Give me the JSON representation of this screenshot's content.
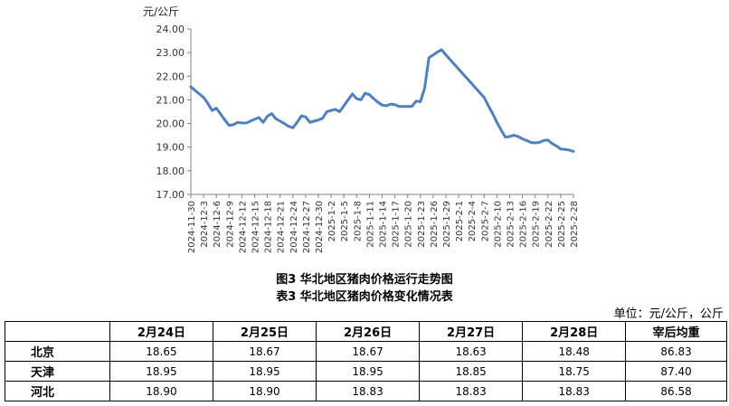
{
  "chart_data": {
    "type": "line",
    "unit_label": "元/公斤",
    "ylim": [
      17.0,
      24.0
    ],
    "yticks": [
      "17.00",
      "18.00",
      "19.00",
      "20.00",
      "21.00",
      "22.00",
      "23.00",
      "24.00"
    ],
    "x_tick_labels": [
      "2024-11-30",
      "2024-12-3",
      "2024-12-6",
      "2024-12-9",
      "2024-12-12",
      "2024-12-15",
      "2024-12-18",
      "2024-12-21",
      "2024-12-24",
      "2024-12-27",
      "2024-12-30",
      "2025-1-2",
      "2025-1-5",
      "2025-1-8",
      "2025-1-11",
      "2025-1-14",
      "2025-1-17",
      "2025-1-20",
      "2025-1-23",
      "2025-1-26",
      "2025-1-29",
      "2025-2-1",
      "2025-2-4",
      "2025-2-7",
      "2025-2-10",
      "2025-2-13",
      "2025-2-16",
      "2025-2-19",
      "2025-2-22",
      "2025-2-25",
      "2025-2-28"
    ],
    "series": [
      {
        "color": "#4f81bd",
        "x": [
          "2024-11-30",
          "2024-12-1",
          "2024-12-2",
          "2024-12-3",
          "2024-12-4",
          "2024-12-5",
          "2024-12-6",
          "2024-12-7",
          "2024-12-8",
          "2024-12-9",
          "2024-12-10",
          "2024-12-11",
          "2024-12-12",
          "2024-12-13",
          "2024-12-14",
          "2024-12-15",
          "2024-12-16",
          "2024-12-17",
          "2024-12-18",
          "2024-12-19",
          "2024-12-20",
          "2024-12-21",
          "2024-12-22",
          "2024-12-23",
          "2024-12-24",
          "2024-12-25",
          "2024-12-26",
          "2024-12-27",
          "2024-12-28",
          "2024-12-29",
          "2024-12-30",
          "2024-12-31",
          "2025-1-1",
          "2025-1-2",
          "2025-1-3",
          "2025-1-4",
          "2025-1-5",
          "2025-1-6",
          "2025-1-7",
          "2025-1-8",
          "2025-1-9",
          "2025-1-10",
          "2025-1-11",
          "2025-1-12",
          "2025-1-13",
          "2025-1-14",
          "2025-1-15",
          "2025-1-16",
          "2025-1-17",
          "2025-1-18",
          "2025-1-19",
          "2025-1-20",
          "2025-1-21",
          "2025-1-22",
          "2025-1-23",
          "2025-1-24",
          "2025-1-25",
          "2025-1-26",
          "2025-1-27",
          "2025-1-28",
          "2025-1-29",
          "2025-1-30",
          "2025-1-31",
          "2025-2-1",
          "2025-2-2",
          "2025-2-3",
          "2025-2-4",
          "2025-2-5",
          "2025-2-6",
          "2025-2-7",
          "2025-2-8",
          "2025-2-9",
          "2025-2-10",
          "2025-2-11",
          "2025-2-12",
          "2025-2-13",
          "2025-2-14",
          "2025-2-15",
          "2025-2-16",
          "2025-2-17",
          "2025-2-18",
          "2025-2-19",
          "2025-2-20",
          "2025-2-21",
          "2025-2-22",
          "2025-2-23",
          "2025-2-24",
          "2025-2-25",
          "2025-2-26",
          "2025-2-27",
          "2025-2-28"
        ],
        "values": [
          21.55,
          21.4,
          21.25,
          21.1,
          20.85,
          20.55,
          20.65,
          20.4,
          20.15,
          19.92,
          19.95,
          20.05,
          20.02,
          20.02,
          20.1,
          20.18,
          20.25,
          20.05,
          20.3,
          20.42,
          20.2,
          20.1,
          20.0,
          19.88,
          19.82,
          20.05,
          20.32,
          20.28,
          20.05,
          20.1,
          20.15,
          20.22,
          20.5,
          20.55,
          20.6,
          20.5,
          20.75,
          21.0,
          21.25,
          21.05,
          21.0,
          21.28,
          21.22,
          21.05,
          20.9,
          20.78,
          20.75,
          20.82,
          20.8,
          20.72,
          20.72,
          20.72,
          20.72,
          20.95,
          20.92,
          21.5,
          22.78,
          22.9,
          23.02,
          23.12,
          22.9,
          22.7,
          22.5,
          22.3,
          22.1,
          21.9,
          21.7,
          21.5,
          21.3,
          21.1,
          20.75,
          20.42,
          20.05,
          19.72,
          19.42,
          19.45,
          19.5,
          19.45,
          19.35,
          19.28,
          19.2,
          19.18,
          19.2,
          19.28,
          19.3,
          19.15,
          19.05,
          18.92,
          18.9,
          18.88,
          18.82
        ]
      }
    ]
  },
  "captions": {
    "figure": "图3  华北地区猪肉价格运行走势图",
    "table": "表3  华北地区猪肉价格变化情况表",
    "unit": "单位：元/公斤，公斤"
  },
  "table": {
    "headers": [
      "",
      "2月24日",
      "2月25日",
      "2月26日",
      "2月27日",
      "2月28日",
      "宰后均重"
    ],
    "rows": [
      {
        "region": "北京",
        "values": [
          "18.65",
          "18.67",
          "18.67",
          "18.63",
          "18.48",
          "86.83"
        ]
      },
      {
        "region": "天津",
        "values": [
          "18.95",
          "18.95",
          "18.95",
          "18.85",
          "18.75",
          "87.40"
        ]
      },
      {
        "region": "河北",
        "values": [
          "18.90",
          "18.90",
          "18.83",
          "18.83",
          "18.83",
          "86.58"
        ]
      }
    ]
  }
}
